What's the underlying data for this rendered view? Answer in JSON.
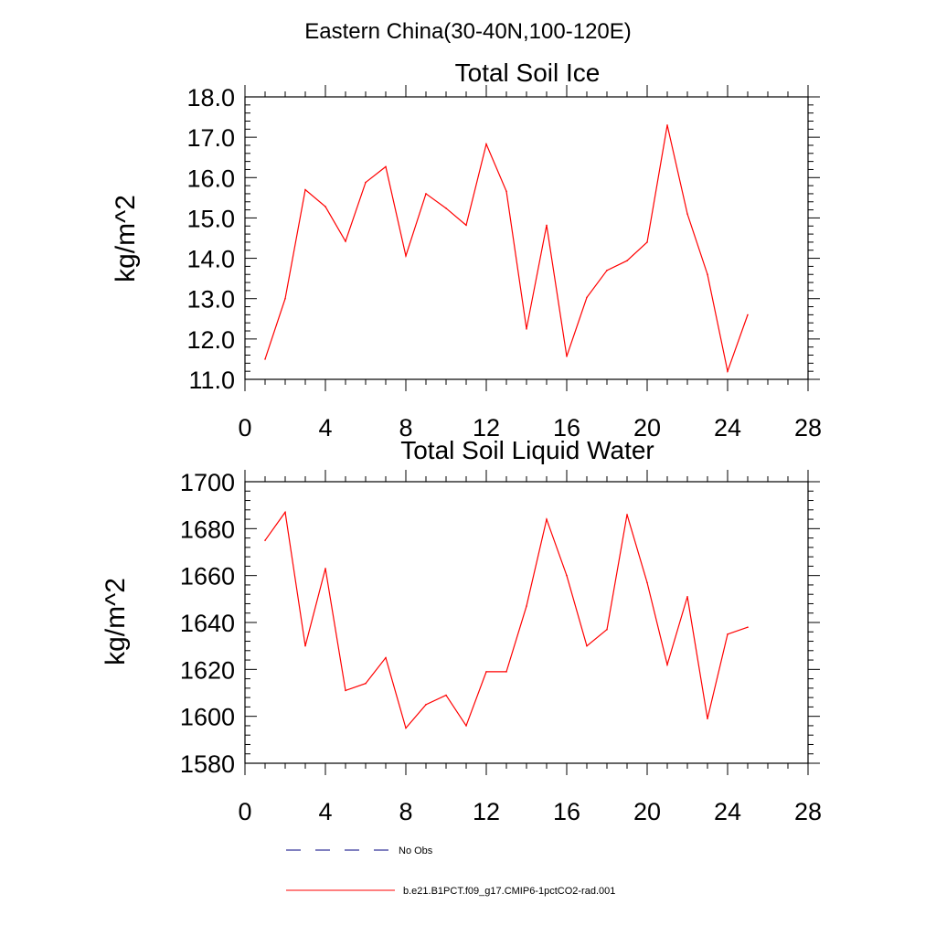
{
  "figure": {
    "supertitle": "Eastern China(30-40N,100-120E)"
  },
  "colors": {
    "series": "#ff0000",
    "obs": "#000080",
    "axis": "#000000"
  },
  "legend": {
    "placement": "bottom",
    "entries": [
      {
        "label": "No Obs",
        "style": "dashed",
        "color": "#000080"
      },
      {
        "label": "b.e21.B1PCT.f09_g17.CMIP6-1pctCO2-rad.001",
        "style": "solid",
        "color": "#ff0000"
      }
    ]
  },
  "chart_data": [
    {
      "type": "line",
      "title": "Total Soil Ice",
      "xlabel": "",
      "ylabel": "kg/m^2",
      "xlim": [
        0,
        28
      ],
      "ylim": [
        11,
        18
      ],
      "xticks": [
        0,
        4,
        8,
        12,
        16,
        20,
        24,
        28
      ],
      "xtick_labels": [
        "0",
        "4",
        "8",
        "12",
        "16",
        "20",
        "24",
        "28"
      ],
      "yticks": [
        11,
        12,
        13,
        14,
        15,
        16,
        17,
        18
      ],
      "ytick_labels": [
        "11.0",
        "12.0",
        "13.0",
        "14.0",
        "15.0",
        "16.0",
        "17.0",
        "18.0"
      ],
      "grid": false,
      "x": [
        1,
        2,
        3,
        4,
        5,
        6,
        7,
        8,
        9,
        10,
        11,
        12,
        13,
        14,
        15,
        16,
        17,
        18,
        19,
        20,
        21,
        22,
        23,
        24,
        25
      ],
      "series": [
        {
          "name": "b.e21.B1PCT.f09_g17.CMIP6-1pctCO2-rad.001",
          "values": [
            11.5,
            13.0,
            15.7,
            15.28,
            14.42,
            15.88,
            16.27,
            14.06,
            15.6,
            15.24,
            14.82,
            16.83,
            15.66,
            12.25,
            14.82,
            11.57,
            13.03,
            13.7,
            13.94,
            14.4,
            17.3,
            15.1,
            13.6,
            11.2,
            12.6
          ]
        }
      ]
    },
    {
      "type": "line",
      "title": "Total Soil Liquid Water",
      "xlabel": "",
      "ylabel": "kg/m^2",
      "xlim": [
        0,
        28
      ],
      "ylim": [
        1580,
        1700
      ],
      "xticks": [
        0,
        4,
        8,
        12,
        16,
        20,
        24,
        28
      ],
      "xtick_labels": [
        "0",
        "4",
        "8",
        "12",
        "16",
        "20",
        "24",
        "28"
      ],
      "yticks": [
        1580,
        1600,
        1620,
        1640,
        1660,
        1680,
        1700
      ],
      "ytick_labels": [
        "1580",
        "1600",
        "1620",
        "1640",
        "1660",
        "1680",
        "1700"
      ],
      "grid": false,
      "x": [
        1,
        2,
        3,
        4,
        5,
        6,
        7,
        8,
        9,
        10,
        11,
        12,
        13,
        14,
        15,
        16,
        17,
        18,
        19,
        20,
        21,
        22,
        23,
        24,
        25
      ],
      "series": [
        {
          "name": "b.e21.B1PCT.f09_g17.CMIP6-1pctCO2-rad.001",
          "values": [
            1675,
            1687,
            1630,
            1663,
            1611,
            1614,
            1625,
            1595,
            1605,
            1609,
            1596,
            1619,
            1619,
            1647,
            1684,
            1660,
            1630,
            1637,
            1686,
            1657,
            1622,
            1651,
            1599,
            1635,
            1638
          ]
        }
      ]
    }
  ]
}
